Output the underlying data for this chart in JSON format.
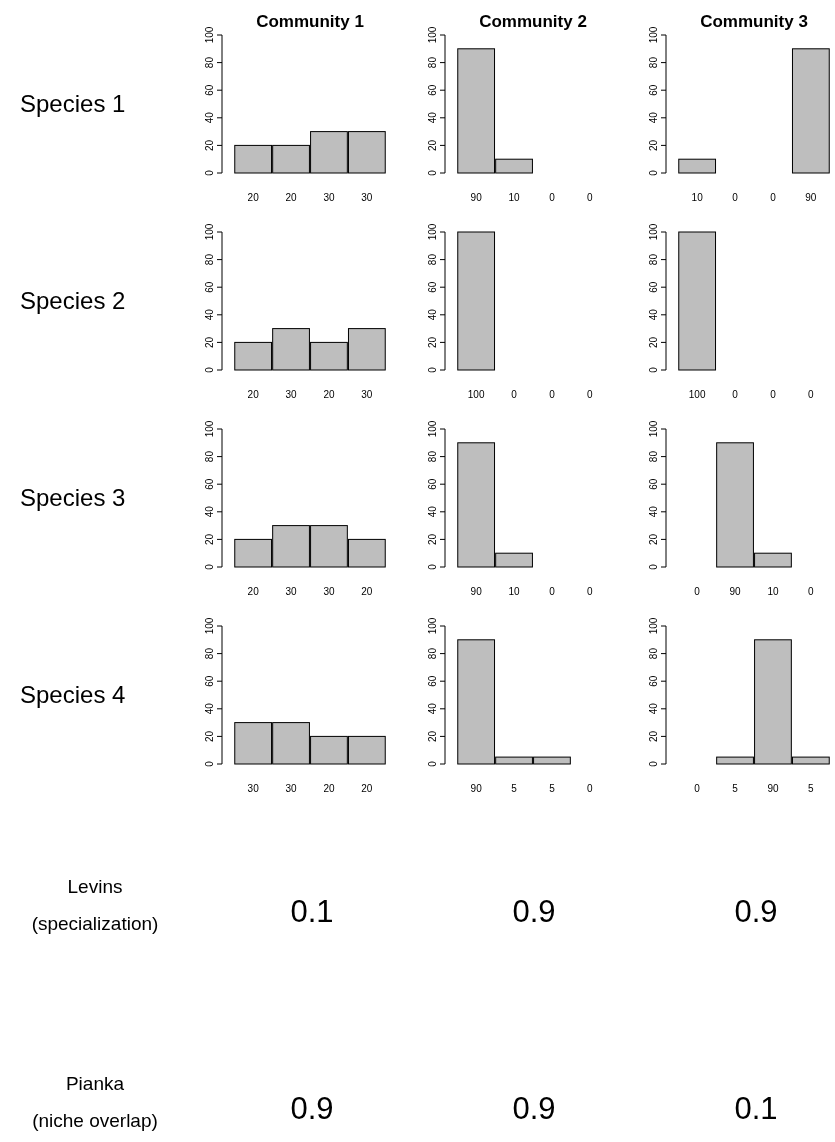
{
  "chart_data": [
    {
      "type": "bar",
      "title": "Community 1",
      "ylabel": "Species 1",
      "categories": [
        "20",
        "20",
        "30",
        "30"
      ],
      "values": [
        20,
        20,
        30,
        30
      ],
      "color": "#bebebe",
      "ylim": [
        0,
        100
      ],
      "yticks": [
        0,
        20,
        40,
        60,
        80,
        100
      ]
    },
    {
      "type": "bar",
      "title": "Community 2",
      "categories": [
        "90",
        "10",
        "0",
        "0"
      ],
      "values": [
        90,
        10,
        0,
        0
      ],
      "color": "#bebebe",
      "ylim": [
        0,
        100
      ],
      "yticks": [
        0,
        20,
        40,
        60,
        80,
        100
      ]
    },
    {
      "type": "bar",
      "title": "Community 3",
      "categories": [
        "10",
        "0",
        "0",
        "90"
      ],
      "values": [
        10,
        0,
        0,
        90
      ],
      "color": "#bebebe",
      "ylim": [
        0,
        100
      ],
      "yticks": [
        0,
        20,
        40,
        60,
        80,
        100
      ]
    },
    {
      "type": "bar",
      "ylabel": "Species 2",
      "categories": [
        "20",
        "30",
        "20",
        "30"
      ],
      "values": [
        20,
        30,
        20,
        30
      ],
      "color": "#bebebe",
      "ylim": [
        0,
        100
      ],
      "yticks": [
        0,
        20,
        40,
        60,
        80,
        100
      ]
    },
    {
      "type": "bar",
      "categories": [
        "100",
        "0",
        "0",
        "0"
      ],
      "values": [
        100,
        0,
        0,
        0
      ],
      "color": "#bebebe",
      "ylim": [
        0,
        100
      ],
      "yticks": [
        0,
        20,
        40,
        60,
        80,
        100
      ]
    },
    {
      "type": "bar",
      "categories": [
        "100",
        "0",
        "0",
        "0"
      ],
      "values": [
        100,
        0,
        0,
        0
      ],
      "color": "#bebebe",
      "ylim": [
        0,
        100
      ],
      "yticks": [
        0,
        20,
        40,
        60,
        80,
        100
      ]
    },
    {
      "type": "bar",
      "ylabel": "Species 3",
      "categories": [
        "20",
        "30",
        "30",
        "20"
      ],
      "values": [
        20,
        30,
        30,
        20
      ],
      "color": "#bebebe",
      "ylim": [
        0,
        100
      ],
      "yticks": [
        0,
        20,
        40,
        60,
        80,
        100
      ]
    },
    {
      "type": "bar",
      "categories": [
        "90",
        "10",
        "0",
        "0"
      ],
      "values": [
        90,
        10,
        0,
        0
      ],
      "color": "#bebebe",
      "ylim": [
        0,
        100
      ],
      "yticks": [
        0,
        20,
        40,
        60,
        80,
        100
      ]
    },
    {
      "type": "bar",
      "categories": [
        "0",
        "90",
        "10",
        "0"
      ],
      "values": [
        0,
        90,
        10,
        0
      ],
      "color": "#bebebe",
      "ylim": [
        0,
        100
      ],
      "yticks": [
        0,
        20,
        40,
        60,
        80,
        100
      ]
    },
    {
      "type": "bar",
      "ylabel": "Species 4",
      "categories": [
        "30",
        "30",
        "20",
        "20"
      ],
      "values": [
        30,
        30,
        20,
        20
      ],
      "color": "#bebebe",
      "ylim": [
        0,
        100
      ],
      "yticks": [
        0,
        20,
        40,
        60,
        80,
        100
      ]
    },
    {
      "type": "bar",
      "categories": [
        "90",
        "5",
        "5",
        "0"
      ],
      "values": [
        90,
        5,
        5,
        0
      ],
      "color": "#bebebe",
      "ylim": [
        0,
        100
      ],
      "yticks": [
        0,
        20,
        40,
        60,
        80,
        100
      ]
    },
    {
      "type": "bar",
      "categories": [
        "0",
        "5",
        "90",
        "5"
      ],
      "values": [
        0,
        5,
        90,
        5
      ],
      "color": "#bebebe",
      "ylim": [
        0,
        100
      ],
      "yticks": [
        0,
        20,
        40,
        60,
        80,
        100
      ]
    },
    {
      "type": "other",
      "annotations": [
        "Levins",
        "(specialization)",
        "0.1",
        "0.9",
        "0.9"
      ]
    },
    {
      "type": "other",
      "annotations": [
        "Pianka",
        "(niche overlap)",
        "0.9",
        "0.9",
        "0.1"
      ]
    }
  ]
}
